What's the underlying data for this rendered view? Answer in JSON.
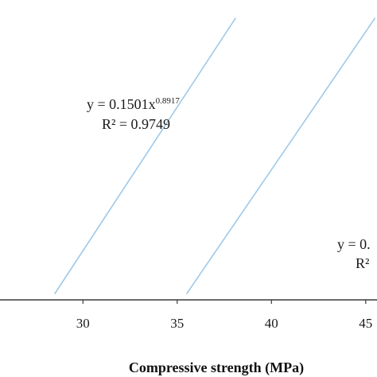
{
  "chart_data": {
    "type": "line",
    "title": "",
    "xlabel": "Compressive strength (MPa)",
    "ylabel": "",
    "xlim": [
      25.6,
      45.6
    ],
    "ylim": [
      0,
      1
    ],
    "xticks": [
      "30",
      "35",
      "40",
      "45"
    ],
    "grid": false,
    "colors": {
      "series": "#9ec9e8",
      "axis": "#3a3a3a"
    },
    "series": [
      {
        "name": "",
        "x": [
          28.5,
          38.1
        ],
        "y": [
          0.02,
          0.94
        ],
        "annotation": {
          "prefix": "y = 0.1501x",
          "exponent": "0.8917",
          "r2": "R² = 0.9749"
        }
      },
      {
        "name": "",
        "x": [
          35.5,
          45.5
        ],
        "y": [
          0.02,
          0.94
        ],
        "annotation": {
          "prefix": "y = 0.",
          "exponent": "",
          "r2": "R²"
        }
      }
    ]
  }
}
